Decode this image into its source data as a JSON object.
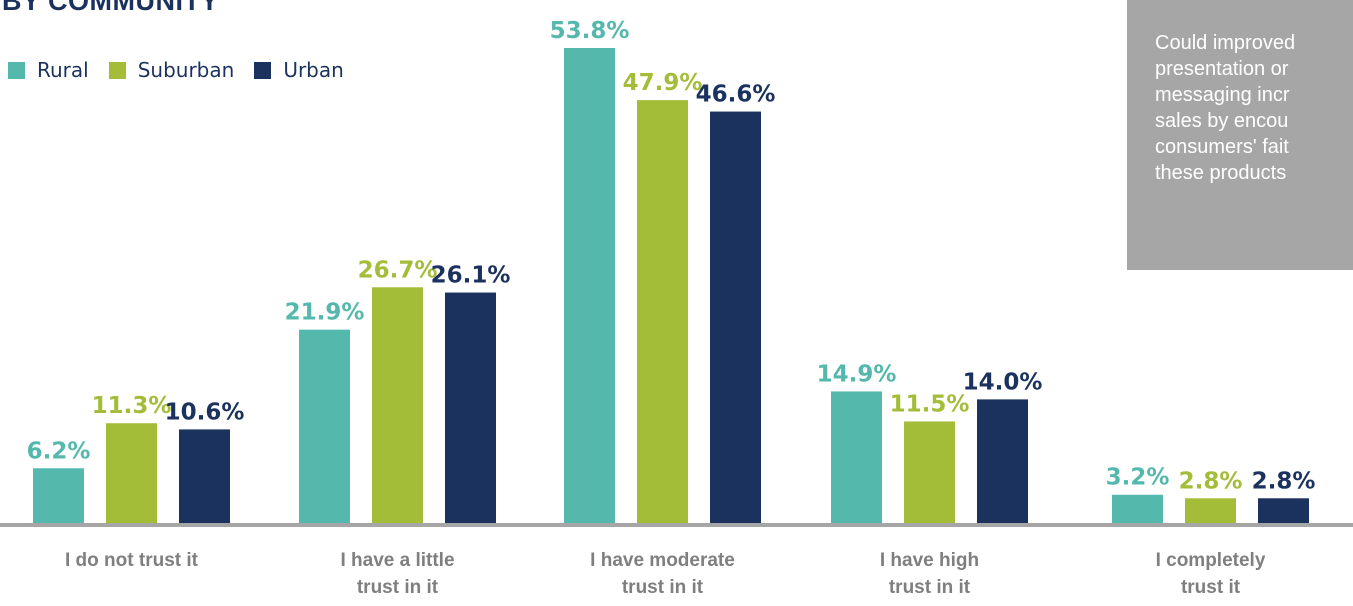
{
  "header": {
    "title": "BY COMMUNITY"
  },
  "note": {
    "text": "Could improved\npresentation or\nmessaging incr\nsales by encou\nconsumers' fait\nthese products"
  },
  "chart_data": {
    "type": "bar",
    "categories": [
      [
        "I do not trust it"
      ],
      [
        "I have a little",
        "trust in it"
      ],
      [
        "I have moderate",
        "trust in it"
      ],
      [
        "I have high",
        "trust in it"
      ],
      [
        "I completely",
        "trust it"
      ]
    ],
    "series": [
      {
        "name": "Rural",
        "color": "#55b8ac",
        "values": [
          6.2,
          21.9,
          53.8,
          14.9,
          3.2
        ],
        "labels": [
          "6.2%",
          "21.9%",
          "53.8%",
          "14.9%",
          "3.2%"
        ]
      },
      {
        "name": "Suburban",
        "color": "#a3bd39",
        "values": [
          11.3,
          26.7,
          47.9,
          11.5,
          2.8
        ],
        "labels": [
          "11.3%",
          "26.7%",
          "47.9%",
          "11.5%",
          "2.8%"
        ]
      },
      {
        "name": "Urban",
        "color": "#1b325e",
        "values": [
          10.6,
          26.1,
          46.6,
          14.0,
          2.8
        ],
        "labels": [
          "10.6%",
          "26.1%",
          "46.6%",
          "14.0%",
          "2.8%"
        ]
      }
    ],
    "ylim": [
      0,
      53.8
    ],
    "grid": false,
    "legend": "top-left",
    "axis_color": "#a6a6a6",
    "category_label_color": "#7f7f7f"
  }
}
